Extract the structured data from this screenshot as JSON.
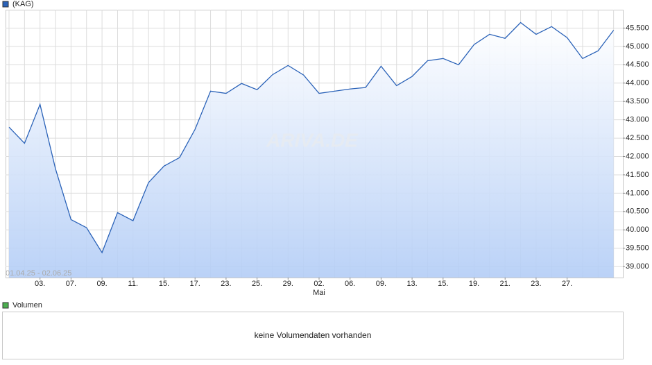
{
  "chart_data": {
    "type": "line",
    "series": [
      {
        "name": "(KAG)",
        "color": "#2a62b8",
        "values": [
          42.8,
          42.36,
          43.42,
          41.66,
          40.28,
          40.06,
          39.38,
          40.47,
          40.25,
          41.29,
          41.74,
          41.97,
          42.74,
          43.78,
          43.72,
          43.99,
          43.82,
          44.23,
          44.48,
          44.22,
          43.72,
          43.78,
          43.84,
          43.88,
          44.46,
          43.93,
          44.18,
          44.61,
          44.67,
          44.5,
          45.05,
          45.33,
          45.22,
          45.65,
          45.33,
          45.54,
          45.24,
          44.67,
          44.88,
          45.44
        ]
      }
    ],
    "categories": [
      null,
      null,
      "03.",
      null,
      "07.",
      null,
      "09.",
      null,
      "11.",
      null,
      "15.",
      null,
      "17.",
      null,
      "23.",
      null,
      "25.",
      null,
      "29.",
      null,
      "02.",
      null,
      "06.",
      null,
      "09.",
      null,
      "13.",
      null,
      "15.",
      null,
      "19.",
      null,
      "21.",
      null,
      "23.",
      null,
      "27.",
      null,
      null,
      null
    ],
    "month_label": "Mai",
    "date_range": "01.04.25 - 02.06.25",
    "watermark": "ARIVA.DE",
    "ylim": [
      38.7,
      46.0
    ],
    "yticks": [
      {
        "value": 39,
        "label": "39.000"
      },
      {
        "value": 39.5,
        "label": "39.500"
      },
      {
        "value": 40,
        "label": "40.000"
      },
      {
        "value": 40.5,
        "label": "40.500"
      },
      {
        "value": 41,
        "label": "41.000"
      },
      {
        "value": 41.5,
        "label": "41.500"
      },
      {
        "value": 42,
        "label": "42.000"
      },
      {
        "value": 42.5,
        "label": "42.500"
      },
      {
        "value": 43,
        "label": "43.000"
      },
      {
        "value": 43.5,
        "label": "43.500"
      },
      {
        "value": 44,
        "label": "44.000"
      },
      {
        "value": 44.5,
        "label": "44.500"
      },
      {
        "value": 45,
        "label": "45.000"
      },
      {
        "value": 45.5,
        "label": "45.500"
      }
    ],
    "grid": true,
    "volume": {
      "legend": "Volumen",
      "color": "#4caf50",
      "message": "keine Volumendaten vorhanden"
    }
  }
}
